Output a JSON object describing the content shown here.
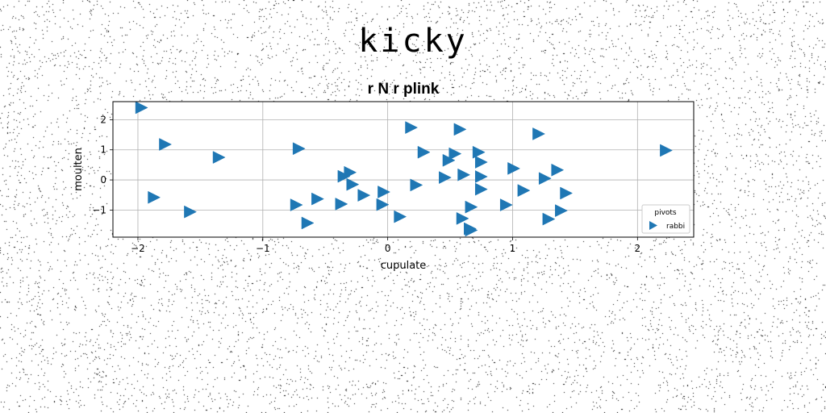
{
  "figure": {
    "title": "kicky"
  },
  "chart_data": {
    "type": "scatter",
    "title": "r N r plink",
    "xlabel": "cupulate",
    "ylabel": "moulten",
    "xlim": [
      -2.2,
      2.45
    ],
    "ylim": [
      -1.9,
      2.6
    ],
    "xticks": [
      -2,
      -1,
      0,
      1,
      2
    ],
    "yticks": [
      -1,
      0,
      1,
      2
    ],
    "grid": true,
    "legend": {
      "title": "pivots",
      "placement": "lower-right"
    },
    "marker_color": "#1f77b4",
    "series": [
      {
        "name": "rabbi",
        "marker": "triangle-right",
        "points": [
          [
            -1.98,
            2.4
          ],
          [
            -1.79,
            1.18
          ],
          [
            -1.88,
            -0.58
          ],
          [
            -1.59,
            -1.06
          ],
          [
            -1.36,
            0.75
          ],
          [
            -0.72,
            1.04
          ],
          [
            -0.74,
            -0.83
          ],
          [
            -0.65,
            -1.43
          ],
          [
            -0.57,
            -0.63
          ],
          [
            -0.36,
            0.12
          ],
          [
            -0.31,
            0.25
          ],
          [
            -0.29,
            -0.15
          ],
          [
            -0.38,
            -0.8
          ],
          [
            -0.2,
            -0.51
          ],
          [
            -0.04,
            -0.4
          ],
          [
            -0.05,
            -0.82
          ],
          [
            0.09,
            -1.22
          ],
          [
            0.18,
            1.74
          ],
          [
            0.22,
            -0.17
          ],
          [
            0.28,
            0.92
          ],
          [
            0.45,
            0.08
          ],
          [
            0.48,
            0.65
          ],
          [
            0.53,
            0.87
          ],
          [
            0.57,
            1.68
          ],
          [
            0.6,
            0.17
          ],
          [
            0.59,
            -1.28
          ],
          [
            0.66,
            -0.9
          ],
          [
            0.65,
            -1.62
          ],
          [
            0.66,
            -1.67
          ],
          [
            0.72,
            0.92
          ],
          [
            0.74,
            0.59
          ],
          [
            0.74,
            0.11
          ],
          [
            0.74,
            -0.31
          ],
          [
            0.94,
            -0.83
          ],
          [
            1.0,
            0.38
          ],
          [
            1.08,
            -0.35
          ],
          [
            1.2,
            1.53
          ],
          [
            1.25,
            0.05
          ],
          [
            1.28,
            -1.3
          ],
          [
            1.35,
            0.33
          ],
          [
            1.38,
            -1.02
          ],
          [
            1.42,
            -0.44
          ],
          [
            2.22,
            0.98
          ]
        ]
      }
    ]
  }
}
